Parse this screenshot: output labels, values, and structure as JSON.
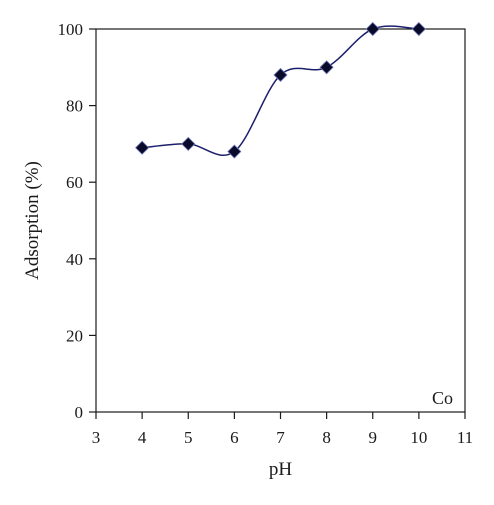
{
  "chart_data": {
    "type": "line",
    "title": "",
    "xlabel": "pH",
    "ylabel": "Adsorption (%)",
    "xlim": [
      3,
      11
    ],
    "ylim": [
      0,
      100
    ],
    "x_ticks": [
      "3",
      "4",
      "5",
      "6",
      "7",
      "8",
      "9",
      "10",
      "11"
    ],
    "y_ticks": [
      "0",
      "20",
      "40",
      "60",
      "80",
      "100"
    ],
    "grid": false,
    "legend": "none",
    "annotation": "Co",
    "marker": "diamond",
    "line_style": "smooth",
    "series_color": "#1c1f6b",
    "marker_color": "#0a0a2a",
    "series": [
      {
        "x": [
          4,
          5,
          6,
          7,
          8,
          9,
          10
        ],
        "y": [
          69,
          70,
          68,
          88,
          90,
          100,
          100
        ]
      }
    ]
  }
}
